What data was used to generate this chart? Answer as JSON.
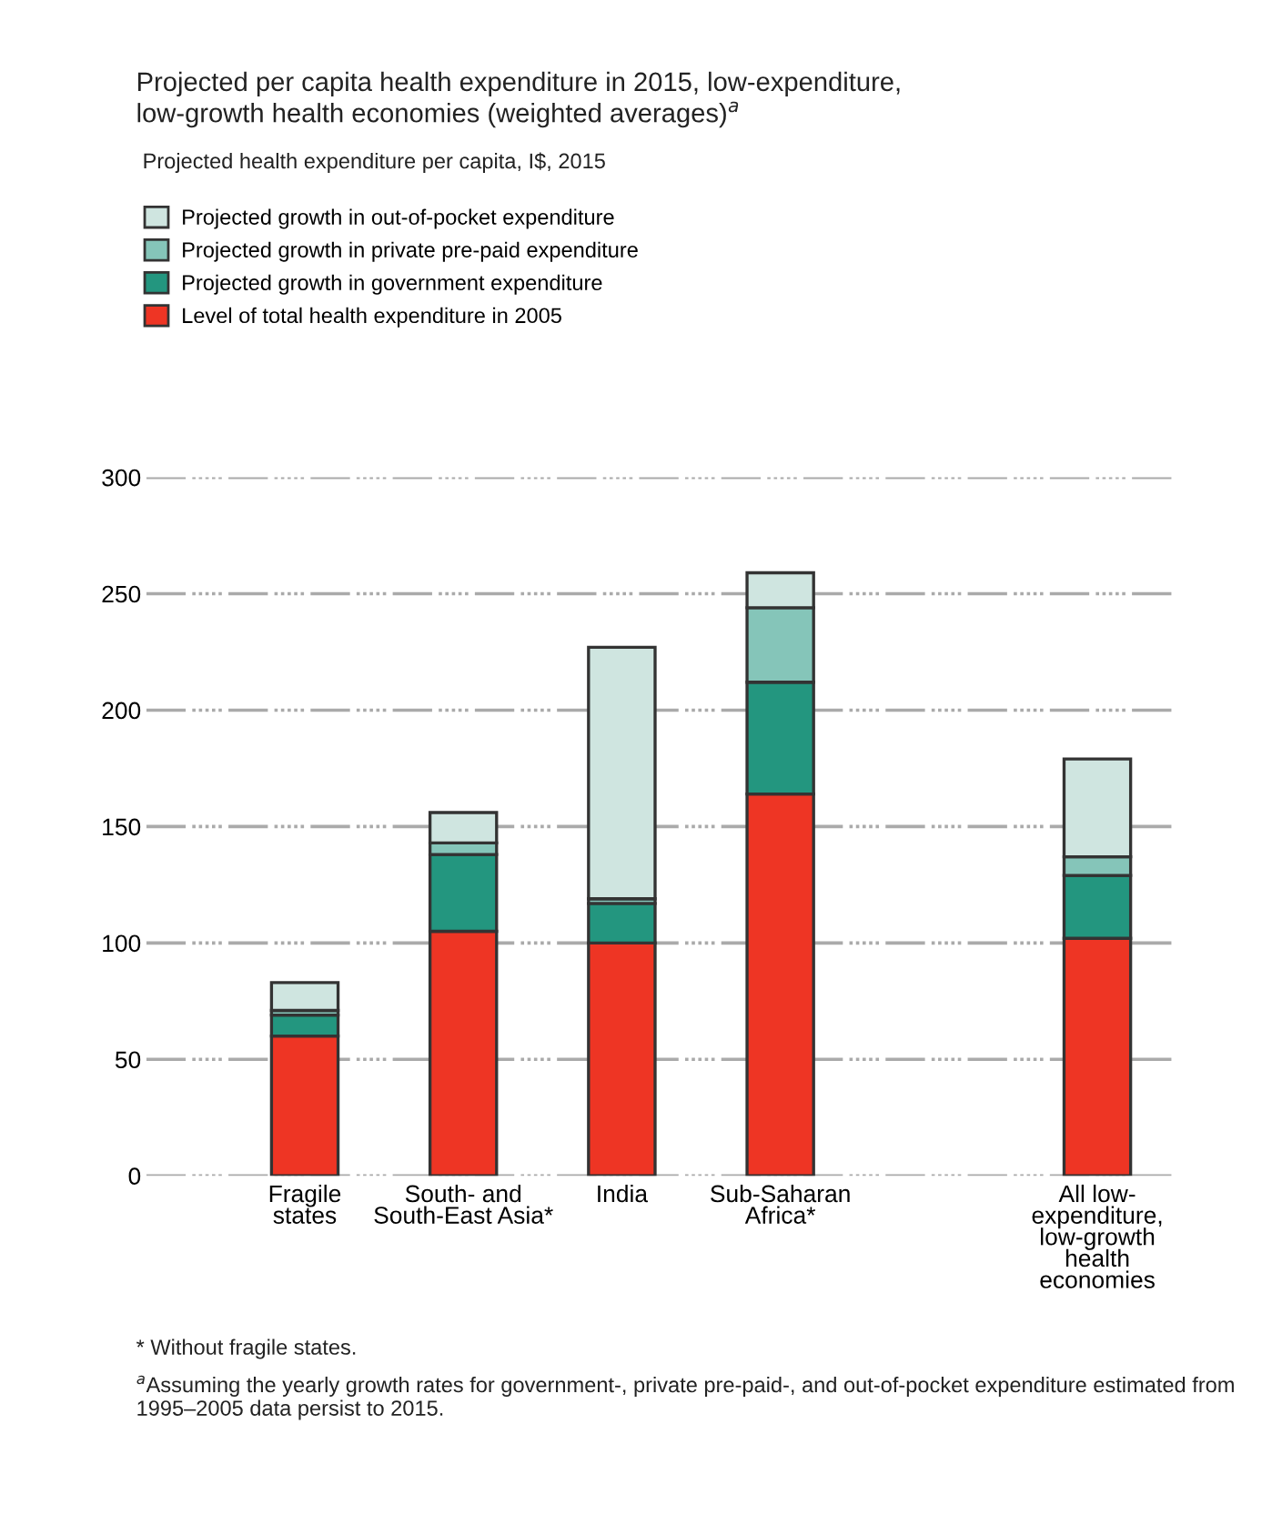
{
  "chart_data": {
    "type": "bar",
    "stacked": true,
    "title": "Projected per capita health expenditure in 2015, low-expenditure,\nlow-growth health economies (weighted averages)$^{a}$",
    "categories": [
      "Fragile\nstates",
      "South- and\nSouth-East Asia*",
      "India",
      "Sub-Saharan\nAfrica*",
      null,
      "All low-\nexpenditure,\nlow-growth\nhealth\neconomies"
    ],
    "series": [
      {
        "name": "Level of total health expenditure in 2005",
        "color": "#ee3524",
        "values": [
          60,
          105,
          100,
          164,
          null,
          102
        ]
      },
      {
        "name": "Projected growth in government expenditure",
        "color": "#23967f",
        "values": [
          9,
          33,
          17,
          48,
          null,
          27
        ]
      },
      {
        "name": "Projected growth in private pre-paid expenditure",
        "color": "#85c5b9",
        "values": [
          2,
          5,
          2,
          32,
          null,
          8
        ]
      },
      {
        "name": "Projected growth in out-of-pocket expenditure",
        "color": "#cfe5e0",
        "values": [
          12,
          13,
          108,
          15,
          null,
          42
        ]
      }
    ],
    "ylim": [
      0,
      300
    ],
    "yticks": [
      0,
      50,
      100,
      150,
      200,
      250,
      300
    ],
    "grid": "y",
    "legend": "top left",
    "annotations": [
      "Projected health expenditure per capita, I$, 2015",
      "* Without fragile states.",
      "$^{a}$Assuming the yearly growth rates for government-, private pre-paid-, and out-of-pocket expenditure estimated from 1995–2005 data persist to 2015."
    ]
  }
}
